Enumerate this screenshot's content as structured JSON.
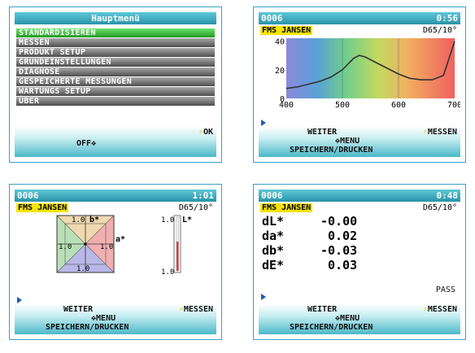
{
  "menu_screen": {
    "title": "Hauptmenü",
    "items": [
      "STANDARDISIEREN",
      "MESSEN",
      "PRODUKT SETUP",
      "GRUNDEINSTELLUNGEN",
      "DIAGNOSE",
      "GESPEICHERTE MESSUNGEN",
      "WARTUNGS SETUP",
      "ÜBER"
    ],
    "selected_index": 0,
    "ok_label": "OK",
    "off_label": "OFF"
  },
  "spectrum_screen": {
    "id": "0006",
    "time": "0:56",
    "sample_name": "FMS JANSEN",
    "illuminant": "D65/10°",
    "next_label": "WEITER",
    "measure_label": "MESSEN",
    "menu_label": "MENU",
    "save_label": "SPEICHERN/DRUCKEN",
    "chart_data": {
      "type": "line",
      "x": [
        400,
        420,
        440,
        460,
        480,
        500,
        510,
        520,
        530,
        540,
        560,
        580,
        600,
        620,
        640,
        660,
        680,
        690,
        700
      ],
      "y": [
        7,
        8,
        10,
        12,
        15,
        20,
        24,
        28,
        30,
        29,
        25,
        21,
        17,
        14,
        13,
        13,
        16,
        28,
        40
      ],
      "xticks": [
        "400",
        "500",
        "600",
        "700"
      ],
      "yticks": [
        "0",
        "20",
        "40"
      ],
      "xlim": [
        400,
        700
      ],
      "ylim": [
        0,
        42
      ]
    }
  },
  "color_screen": {
    "id": "0006",
    "time": "1:01",
    "sample_name": "FMS JANSEN",
    "illuminant": "D65/10°",
    "b_label": "b*",
    "a_label": "a*",
    "L_label": "L*",
    "tick_top": "1.0",
    "tick_left": "1.0",
    "tick_right": "1.0",
    "tick_bottom": "1.0",
    "l_tick_top": "1.0",
    "l_tick_bottom": "1.0",
    "next_label": "WEITER",
    "measure_label": "MESSEN",
    "menu_label": "MENU",
    "save_label": "SPEICHERN/DRUCKEN"
  },
  "diff_screen": {
    "id": "0006",
    "time": "0:48",
    "sample_name": "FMS JANSEN",
    "illuminant": "D65/10°",
    "rows": [
      {
        "label": "dL*",
        "value": "-0.00"
      },
      {
        "label": "da*",
        "value": "0.02"
      },
      {
        "label": "db*",
        "value": "-0.03"
      },
      {
        "label": "dE*",
        "value": "0.03"
      }
    ],
    "status": "PASS",
    "next_label": "WEITER",
    "measure_label": "MESSEN",
    "menu_label": "MENU",
    "save_label": "SPEICHERN/DRUCKEN"
  }
}
